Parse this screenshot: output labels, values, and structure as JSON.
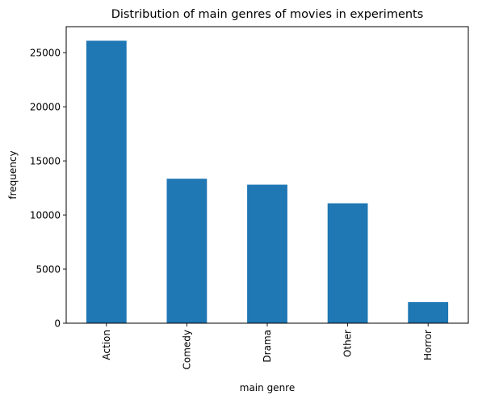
{
  "chart_data": {
    "type": "bar",
    "title": "Distribution of main genres of movies in experiments",
    "xlabel": "main genre",
    "ylabel": "frequency",
    "categories": [
      "Action",
      "Comedy",
      "Drama",
      "Other",
      "Horror"
    ],
    "values": [
      26100,
      13350,
      12800,
      11080,
      1950
    ],
    "ylim": [
      0,
      27400
    ],
    "yticks": [
      0,
      5000,
      10000,
      15000,
      20000,
      25000
    ],
    "bar_color": "#1f77b4",
    "grid": false,
    "legend": "none"
  }
}
